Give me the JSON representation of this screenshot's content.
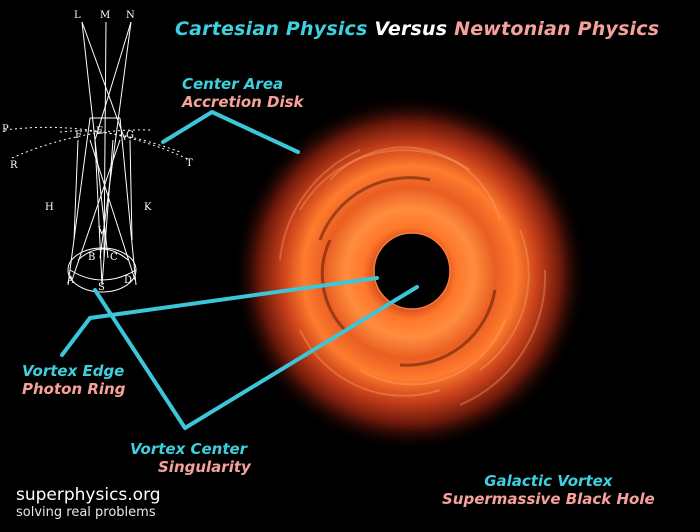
{
  "title": {
    "part1": "Cartesian Physics",
    "part2": " Versus ",
    "part3": "Newtonian Physics"
  },
  "labels": {
    "center_area": {
      "line1": "Center Area",
      "line2": "Accretion Disk"
    },
    "vortex_edge": {
      "line1": "Vortex Edge",
      "line2": "Photon Ring"
    },
    "vortex_center": {
      "line1": "Vortex Center",
      "line2": "Singularity"
    },
    "galactic": {
      "line1": "Galactic Vortex",
      "line2": "Supermassive Black Hole"
    }
  },
  "diagram_letters": {
    "L": "L",
    "M": "M",
    "N": "N",
    "P": "P",
    "F": "F",
    "E": "E",
    "G": "G",
    "R": "R",
    "T": "T",
    "H": "H",
    "K": "K",
    "V": "V",
    "B": "B",
    "C": "C",
    "A": "A",
    "S": "S",
    "D": "D"
  },
  "brand": {
    "site": "superphysics.org",
    "tagline": "solving real problems"
  },
  "colors": {
    "cyan": "#3fd0e0",
    "pink": "#f6a29a",
    "pointer": "#3cc6d8"
  }
}
